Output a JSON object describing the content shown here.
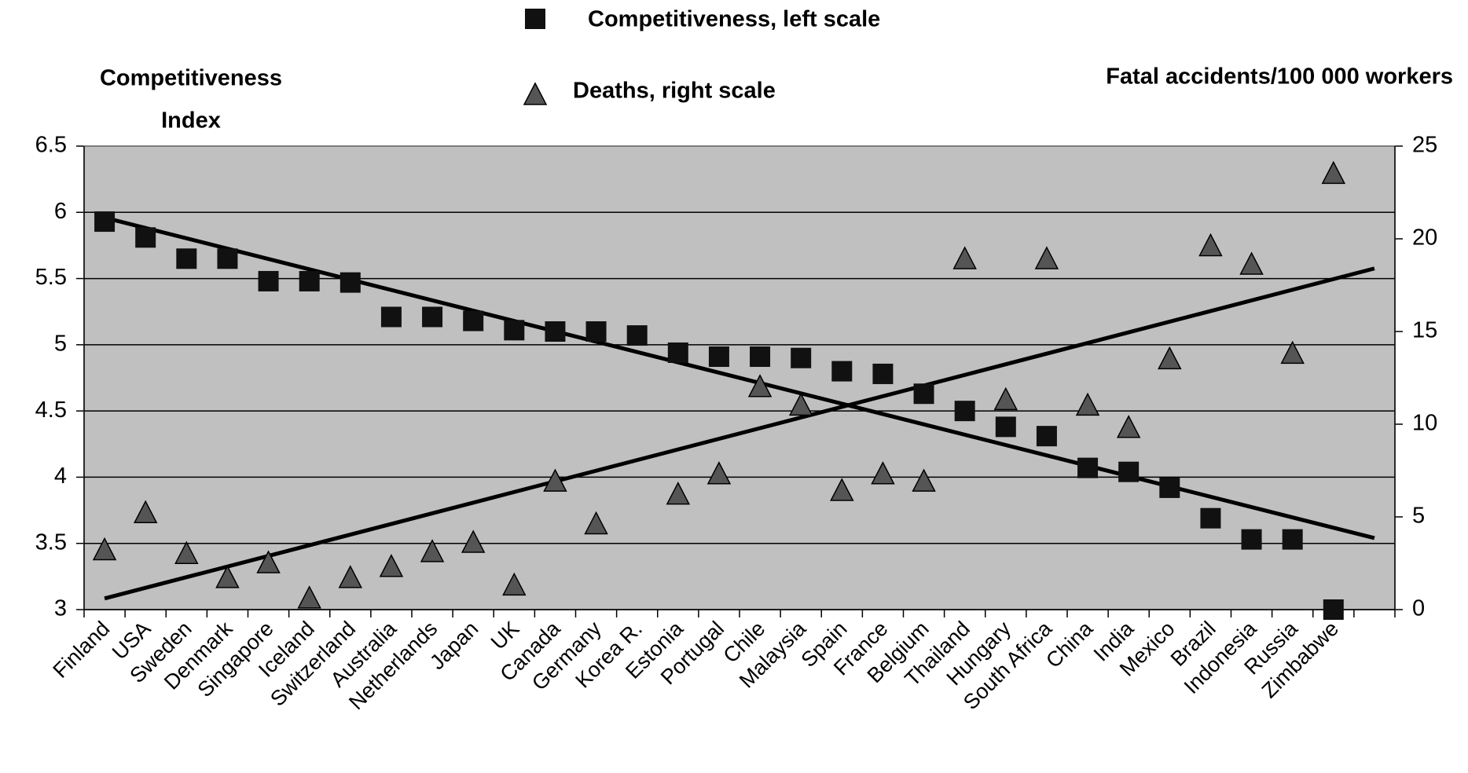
{
  "chart_data": {
    "type": "scatter",
    "y_title": [
      "Competitiveness",
      "Index"
    ],
    "y2_title": "Fatal accidents/100 000 workers",
    "categories": [
      "Finland",
      "USA",
      "Sweden",
      "Denmark",
      "Singapore",
      "Iceland",
      "Switzerland",
      "Australia",
      "Netherlands",
      "Japan",
      "UK",
      "Canada",
      "Germany",
      "Korea R.",
      "Estonia",
      "Portugal",
      "Chile",
      "Malaysia",
      "Spain",
      "France",
      "Belgium",
      "Thailand",
      "Hungary",
      "South Africa",
      "China",
      "India",
      "Mexico",
      "Brazil",
      "Indonesia",
      "Russia",
      "Zimbabwe"
    ],
    "series": [
      {
        "name": "Competitiveness, left scale",
        "marker": "square",
        "color": "#111111",
        "values": [
          5.93,
          5.81,
          5.65,
          5.65,
          5.48,
          5.48,
          5.47,
          5.21,
          5.21,
          5.18,
          5.11,
          5.1,
          5.1,
          5.07,
          4.94,
          4.91,
          4.91,
          4.9,
          4.8,
          4.78,
          4.63,
          4.5,
          4.38,
          4.31,
          4.07,
          4.04,
          3.92,
          3.69,
          3.53,
          3.53,
          3.0
        ],
        "trendline": [
          5.96,
          3.54
        ]
      },
      {
        "name": "Deaths, right scale",
        "marker": "triangle",
        "color": "#555555",
        "axis": "y2",
        "values": [
          3.2,
          5.2,
          3.0,
          1.7,
          2.5,
          0.6,
          1.7,
          2.3,
          3.1,
          3.6,
          1.3,
          6.9,
          4.6,
          null,
          6.2,
          7.3,
          12.0,
          11.0,
          6.4,
          7.3,
          6.9,
          18.9,
          11.3,
          18.9,
          11.0,
          9.8,
          13.5,
          19.6,
          18.6,
          13.8,
          23.5
        ],
        "trendline": [
          0.6,
          18.4
        ]
      }
    ],
    "ylim": [
      3,
      6.5
    ],
    "yticks": [
      3,
      3.5,
      4,
      4.5,
      5,
      5.5,
      6,
      6.5
    ],
    "y2lim": [
      0,
      25
    ],
    "y2ticks": [
      0,
      5,
      10,
      15,
      20,
      25
    ],
    "grid": true
  }
}
